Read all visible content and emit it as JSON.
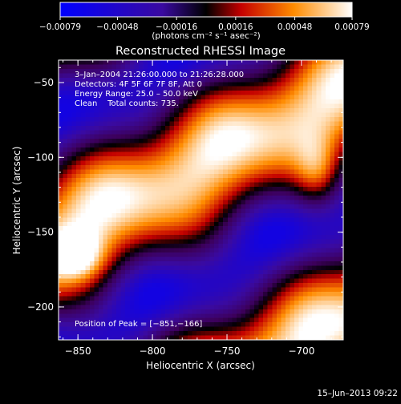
{
  "chart_data": {
    "type": "heatmap",
    "title": "Reconstructed RHESSI Image",
    "xlabel": "Heliocentric X (arcsec)",
    "ylabel": "Heliocentric Y (arcsec)",
    "xlim": [
      -863,
      -672
    ],
    "ylim": [
      -222,
      -35
    ],
    "x_ticks": [
      -850,
      -800,
      -750,
      -700
    ],
    "x_tick_labels": [
      "−850",
      "−800",
      "−750",
      "−700"
    ],
    "y_ticks": [
      -50,
      -100,
      -150,
      -200
    ],
    "y_tick_labels": [
      "−50",
      "−100",
      "−150",
      "−200"
    ],
    "colorbar": {
      "range": [
        -0.00079,
        0.00079
      ],
      "ticks": [
        -0.00079,
        -0.00048,
        -0.00016,
        0.00016,
        0.00048,
        0.00079
      ],
      "tick_labels": [
        "−0.00079",
        "−0.00048",
        "−0.00016",
        "0.00016",
        "0.00048",
        "0.00079"
      ],
      "units_label": "(photons cm⁻² s⁻¹ asec⁻²)"
    },
    "annotations": {
      "time_range": "3–Jan–2004 21:26:00.000 to 21:26:28.000",
      "detectors": "Detectors: 4F 5F 6F 7F 8F, Att 0",
      "energy": "Energy Range: 25.0 – 50.0 keV",
      "method": "Clean    Total counts: 735.",
      "peak": "Position of Peak = [−851,−166]"
    },
    "peak_position": [
      -851,
      -166
    ],
    "image_pattern": {
      "ridges": [
        {
          "peak_x": -851,
          "peak_y": -166,
          "amplitude": 1.0
        },
        {
          "peak_x": -690,
          "peak_y": -110,
          "amplitude": 0.95
        },
        {
          "peak_x": -760,
          "peak_y": -60,
          "amplitude": 0.75
        },
        {
          "peak_x": -770,
          "peak_y": -210,
          "amplitude": 0.85
        }
      ]
    }
  },
  "timestamp": "15–Jun–2013 09:22"
}
